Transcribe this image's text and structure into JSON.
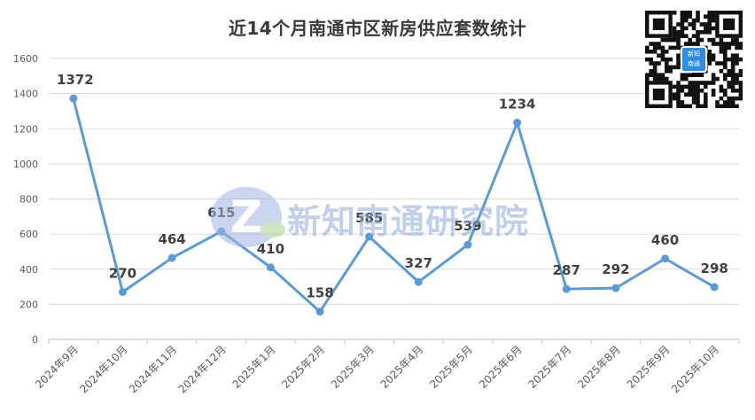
{
  "title": "近14个月南通市区新房供应套数统计",
  "watermark_text": "新知南通研究院",
  "qr_badge": "新知\n南通",
  "colors": {
    "line": "#5b9bd5",
    "grid": "#d9d9d9",
    "axis_text": "#595959",
    "label_text": "#404040"
  },
  "chart_data": {
    "type": "line",
    "title": "近14个月南通市区新房供应套数统计",
    "xlabel": "",
    "ylabel": "",
    "ylim": [
      0,
      1600
    ],
    "yticks": [
      0,
      200,
      400,
      600,
      800,
      1000,
      1200,
      1400,
      1600
    ],
    "grid": true,
    "categories": [
      "2024年9月",
      "2024年10月",
      "2024年11月",
      "2024年12月",
      "2025年1月",
      "2025年2月",
      "2025年3月",
      "2025年4月",
      "2025年5月",
      "2025年6月",
      "2025年7月",
      "2025年8月",
      "2025年9月",
      "2025年10月"
    ],
    "series": [
      {
        "values": [
          1372,
          270,
          464,
          615,
          410,
          158,
          585,
          327,
          539,
          1234,
          287,
          292,
          460,
          298
        ]
      }
    ]
  }
}
